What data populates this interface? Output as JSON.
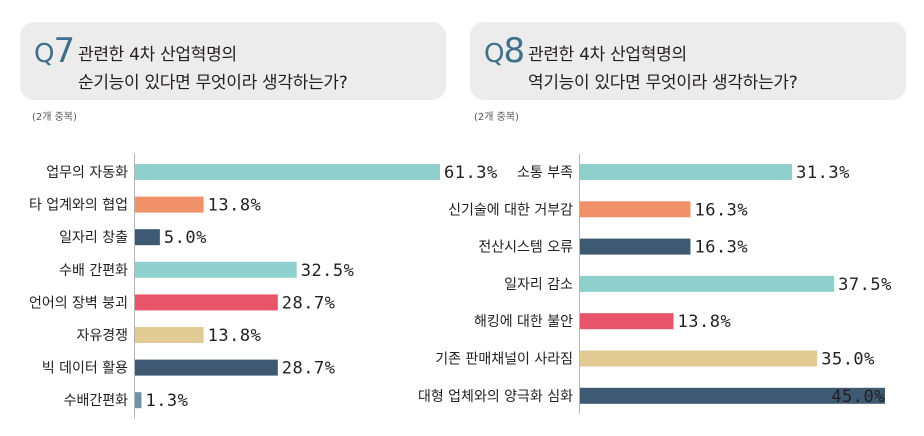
{
  "colors": {
    "teal": "#8fd0cc",
    "orange": "#f0916a",
    "navy": "#3d5a72",
    "red": "#e8546a",
    "tan": "#e2ca94",
    "slate": "#6f93a5",
    "header_bg": "#ececed",
    "qnum": "#3f6f8a"
  },
  "q7": {
    "q_prefix": "Q",
    "q_number": "7",
    "question_line1": "관련한 4차 산업혁명의",
    "question_line2": "순기능이 있다면 무엇이라 생각하는가?",
    "note": "(2개 중복)"
  },
  "q8": {
    "q_prefix": "Q",
    "q_number": "8",
    "question_line1": "관련한 4차 산업혁명의",
    "question_line2": "역기능이 있다면 무엇이라 생각하는가?",
    "note": "(2개 중복)"
  },
  "chart_data": [
    {
      "type": "bar",
      "orientation": "horizontal",
      "title": "관련한 4차 산업혁명의 순기능이 있다면 무엇이라 생각하는가?",
      "categories": [
        "업무의 자동화",
        "타 업계와의 협업",
        "일자리 창출",
        "수배 간편화",
        "언어의 장벽 붕괴",
        "자유경쟁",
        "빅 데이터 활용",
        "수배간편화"
      ],
      "values": [
        61.3,
        13.8,
        5.0,
        32.5,
        28.7,
        13.8,
        28.7,
        1.3
      ],
      "value_labels": [
        "61.3%",
        "13.8%",
        "5.0%",
        "32.5%",
        "28.7%",
        "13.8%",
        "28.7%",
        "1.3%"
      ],
      "colors": [
        "#8fd0cc",
        "#f0916a",
        "#3d5a72",
        "#8fd0cc",
        "#e8546a",
        "#e2ca94",
        "#3d5a72",
        "#6f93a5"
      ],
      "xlim": [
        0,
        61.3
      ],
      "grid": false,
      "legend": "none"
    },
    {
      "type": "bar",
      "orientation": "horizontal",
      "title": "관련한 4차 산업혁명의 역기능이 있다면 무엇이라 생각하는가?",
      "categories": [
        "소통 부족",
        "신기술에 대한 거부감",
        "전산시스템 오류",
        "일자리 감소",
        "해킹에 대한 불안",
        "기존 판매채널이 사라짐",
        "대형 업체와의 양극화 심화"
      ],
      "values": [
        31.3,
        16.3,
        16.3,
        37.5,
        13.8,
        35.0,
        45.0
      ],
      "value_labels": [
        "31.3%",
        "16.3%",
        "16.3%",
        "37.5%",
        "13.8%",
        "35.0%",
        "45.0%"
      ],
      "colors": [
        "#8fd0cc",
        "#f0916a",
        "#3d5a72",
        "#8fd0cc",
        "#e8546a",
        "#e2ca94",
        "#3d5a72"
      ],
      "xlim": [
        0,
        45.0
      ],
      "grid": false,
      "legend": "none"
    }
  ]
}
